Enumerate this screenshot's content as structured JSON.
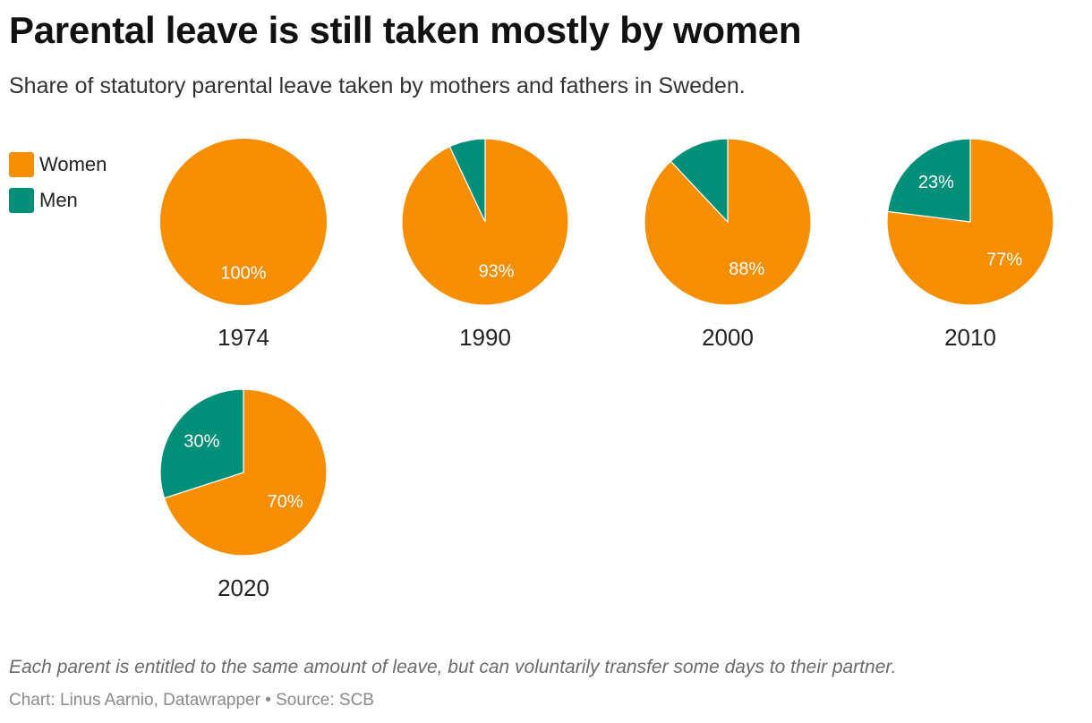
{
  "header": {
    "title": "Parental leave is still taken mostly by women",
    "subtitle": "Share of statutory parental leave taken by mothers and fathers in Sweden."
  },
  "colors": {
    "women": "#f68e00",
    "men": "#00907a",
    "label": "#ffffff",
    "year": "#222222"
  },
  "legend": [
    {
      "label": "Women",
      "color": "#f68e00"
    },
    {
      "label": "Men",
      "color": "#00907a"
    }
  ],
  "chart_data": {
    "type": "pie",
    "title": "Parental leave is still taken mostly by women",
    "series_names": [
      "Women",
      "Men"
    ],
    "pies": [
      {
        "year": "1974",
        "women": 100,
        "men": 0,
        "women_label": "100%",
        "men_label": ""
      },
      {
        "year": "1990",
        "women": 93,
        "men": 7,
        "women_label": "93%",
        "men_label": ""
      },
      {
        "year": "2000",
        "women": 88,
        "men": 12,
        "women_label": "88%",
        "men_label": ""
      },
      {
        "year": "2010",
        "women": 77,
        "men": 23,
        "women_label": "77%",
        "men_label": "23%"
      },
      {
        "year": "2020",
        "women": 70,
        "men": 30,
        "women_label": "70%",
        "men_label": "30%"
      }
    ]
  },
  "footer": {
    "note": "Each parent is entitled to the same amount of leave, but can voluntarily transfer some days to their partner.",
    "credit": "Chart: Linus Aarnio, Datawrapper • Source: SCB"
  }
}
